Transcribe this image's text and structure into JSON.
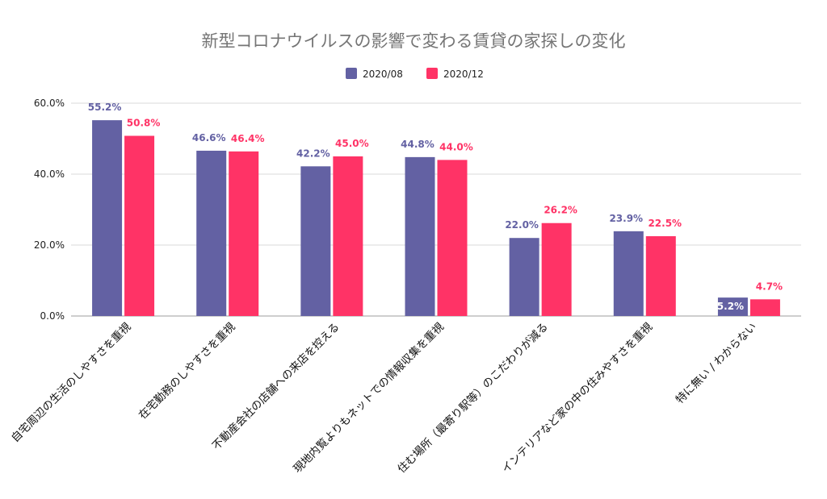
{
  "chart_data": {
    "type": "bar",
    "title": "新型コロナウイルスの影響で変わる賃貸の家探しの変化",
    "categories": [
      "自宅周辺の生活のしやすさを重視",
      "在宅勤務のしやすさを重視",
      "不動産会社の店舗への来店を控える",
      "現地内覧よりもネットでの情報収集を重視",
      "住む場所（最寄り駅等）のこだわりが減る",
      "インテリアなど家の中の住みやすさを重視",
      "特に無い / わからない"
    ],
    "series": [
      {
        "name": "2020/08",
        "color": "#6361a3",
        "values": [
          55.2,
          46.6,
          42.2,
          44.8,
          22.0,
          23.9,
          5.2
        ],
        "labels": [
          "55.2%",
          "46.6%",
          "42.2%",
          "44.8%",
          "22.0%",
          "23.9%",
          "5.2%"
        ]
      },
      {
        "name": "2020/12",
        "color": "#ff3366",
        "values": [
          50.8,
          46.4,
          45.0,
          44.0,
          26.2,
          22.5,
          4.7
        ],
        "labels": [
          "50.8%",
          "46.4%",
          "45.0%",
          "44.0%",
          "26.2%",
          "22.5%",
          "4.7%"
        ]
      }
    ],
    "ylim": [
      0,
      60
    ],
    "yticks": [
      {
        "value": 0,
        "label": "0.0%"
      },
      {
        "value": 20,
        "label": "20.0%"
      },
      {
        "value": 40,
        "label": "40.0%"
      },
      {
        "value": 60,
        "label": "60.0%"
      }
    ],
    "grid": true,
    "legend_position": "top-center",
    "xlabel": "",
    "ylabel": ""
  }
}
